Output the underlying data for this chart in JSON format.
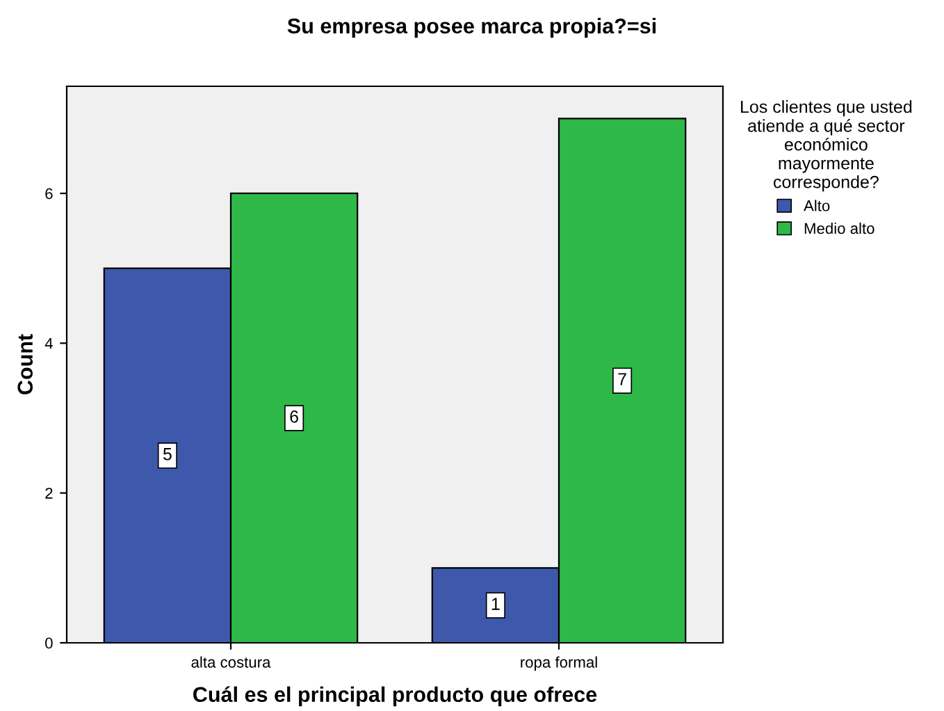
{
  "chart_data": {
    "type": "bar",
    "title": "Su empresa posee marca propia?=si",
    "xlabel": "Cuál es el principal producto que ofrece",
    "ylabel": "Count",
    "legend_title": "Los clientes que usted\natiende a qué sector\neconómico\nmayormente\ncorresponde?",
    "categories": [
      "alta costura",
      "ropa formal"
    ],
    "series": [
      {
        "name": "Alto",
        "color": "#3e58ac",
        "values": [
          5,
          1
        ]
      },
      {
        "name": "Medio alto",
        "color": "#2eb848",
        "values": [
          6,
          7
        ]
      }
    ],
    "ylim": [
      0,
      7.43
    ],
    "yticks": [
      0,
      2,
      4,
      6
    ],
    "grid": false,
    "legend": "top right",
    "data_labels": true
  }
}
